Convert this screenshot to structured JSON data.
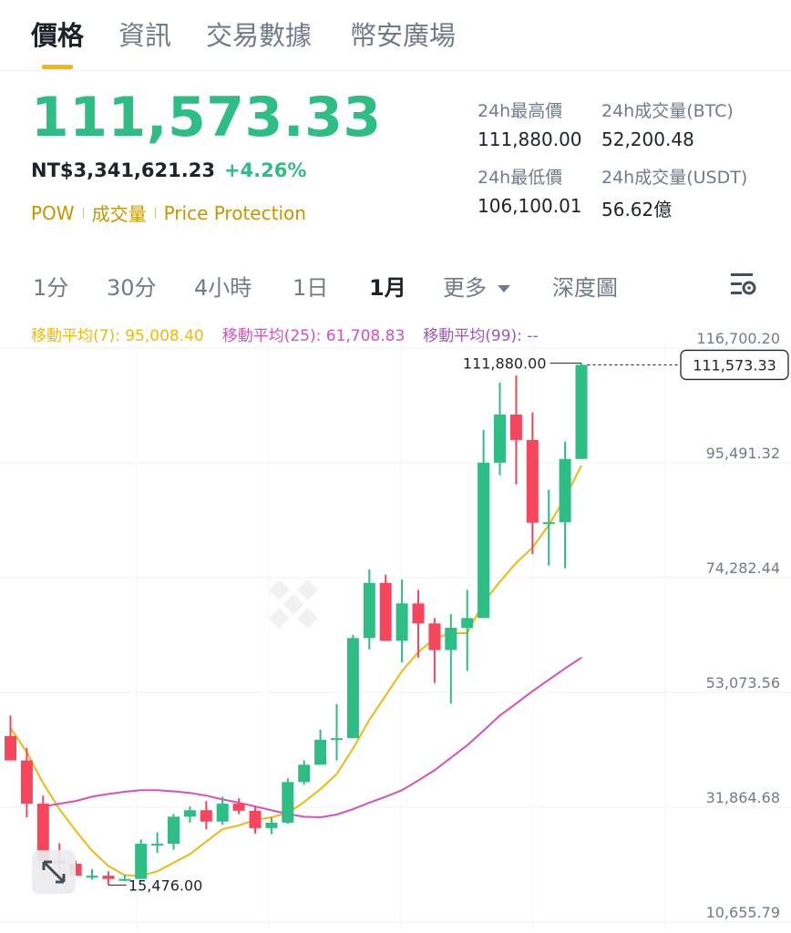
{
  "tabs": [
    {
      "label": "價格",
      "active": true
    },
    {
      "label": "資訊",
      "active": false
    },
    {
      "label": "交易數據",
      "active": false
    },
    {
      "label": "幣安廣場",
      "active": false
    }
  ],
  "ticker": {
    "last_price": "111,573.33",
    "fiat_price": "NT$3,341,621.23",
    "change_pct": "+4.26%",
    "tags": [
      "POW",
      "成交量",
      "Price Protection"
    ]
  },
  "stats": {
    "high_label": "24h最高價",
    "high_value": "111,880.00",
    "vol_btc_label": "24h成交量(BTC)",
    "vol_btc_value": "52,200.48",
    "low_label": "24h最低價",
    "low_value": "106,100.01",
    "vol_usdt_label": "24h成交量(USDT)",
    "vol_usdt_value": "56.62億"
  },
  "timeframes": {
    "items": [
      "1分",
      "30分",
      "4小時",
      "1日",
      "1月"
    ],
    "active": "1月",
    "more_label": "更多",
    "depth_label": "深度圖"
  },
  "indicators": {
    "ma7": "移動平均(7): 95,008.40",
    "ma25": "移動平均(25): 61,708.83",
    "ma99": "移動平均(99): --"
  },
  "colors": {
    "up": "#2ebd85",
    "down": "#f6465d",
    "accent": "#f0b90b",
    "ma7": "#f0b90b",
    "ma25": "#d84fbd",
    "ma99": "#9b59b6"
  },
  "icons": [
    "chart-settings-icon",
    "expand-icon",
    "dropdown-caret-icon"
  ],
  "chart_data": {
    "type": "candlestick",
    "interval": "1月",
    "y_axis_ticks": [
      "116,700.20",
      "95,491.32",
      "74,282.44",
      "53,073.56",
      "31,864.68",
      "10,655.79"
    ],
    "ylim": [
      10655.79,
      116700.2
    ],
    "current_price_label": "111,573.33",
    "max_label": "111,880.00",
    "min_label": "15,476.00",
    "candles": [
      {
        "o": 43000,
        "h": 46800,
        "l": 38500,
        "c": 38500
      },
      {
        "o": 38500,
        "h": 40800,
        "l": 28000,
        "c": 30500
      },
      {
        "o": 30500,
        "h": 32000,
        "l": 19000,
        "c": 19900
      },
      {
        "o": 19900,
        "h": 23200,
        "l": 16600,
        "c": 19400
      },
      {
        "o": 19400,
        "h": 20000,
        "l": 17200,
        "c": 17200
      },
      {
        "o": 17200,
        "h": 18400,
        "l": 16500,
        "c": 17200
      },
      {
        "o": 17200,
        "h": 18000,
        "l": 15476,
        "c": 16600
      },
      {
        "o": 16600,
        "h": 17400,
        "l": 16200,
        "c": 16600
      },
      {
        "o": 16600,
        "h": 23900,
        "l": 16600,
        "c": 23100
      },
      {
        "o": 23100,
        "h": 25200,
        "l": 21400,
        "c": 23100
      },
      {
        "o": 23100,
        "h": 28600,
        "l": 22000,
        "c": 28100
      },
      {
        "o": 28100,
        "h": 30000,
        "l": 27000,
        "c": 29300
      },
      {
        "o": 29300,
        "h": 31000,
        "l": 25800,
        "c": 27200
      },
      {
        "o": 27200,
        "h": 31800,
        "l": 26600,
        "c": 30500
      },
      {
        "o": 30500,
        "h": 31500,
        "l": 28600,
        "c": 29200
      },
      {
        "o": 29200,
        "h": 30000,
        "l": 25000,
        "c": 26000
      },
      {
        "o": 26000,
        "h": 28000,
        "l": 24900,
        "c": 27000
      },
      {
        "o": 27000,
        "h": 35200,
        "l": 26800,
        "c": 34500
      },
      {
        "o": 34500,
        "h": 38500,
        "l": 34000,
        "c": 37700
      },
      {
        "o": 37700,
        "h": 44200,
        "l": 37700,
        "c": 42300
      },
      {
        "o": 42300,
        "h": 48900,
        "l": 38500,
        "c": 42600
      },
      {
        "o": 42600,
        "h": 61700,
        "l": 42600,
        "c": 61100
      },
      {
        "o": 61100,
        "h": 73800,
        "l": 59000,
        "c": 71300
      },
      {
        "o": 71300,
        "h": 72800,
        "l": 60800,
        "c": 60600
      },
      {
        "o": 60600,
        "h": 71900,
        "l": 56600,
        "c": 67500
      },
      {
        "o": 67500,
        "h": 70000,
        "l": 57500,
        "c": 63800
      },
      {
        "o": 63800,
        "h": 64800,
        "l": 52800,
        "c": 58900
      },
      {
        "o": 58900,
        "h": 65500,
        "l": 49000,
        "c": 63000
      },
      {
        "o": 63000,
        "h": 70000,
        "l": 55000,
        "c": 64800
      },
      {
        "o": 64800,
        "h": 99500,
        "l": 64800,
        "c": 93500
      },
      {
        "o": 93500,
        "h": 108300,
        "l": 91200,
        "c": 102400
      },
      {
        "o": 102400,
        "h": 109600,
        "l": 89500,
        "c": 97700
      },
      {
        "o": 97700,
        "h": 102800,
        "l": 76600,
        "c": 82400
      },
      {
        "o": 82400,
        "h": 88500,
        "l": 74500,
        "c": 82500
      },
      {
        "o": 82500,
        "h": 97400,
        "l": 74000,
        "c": 94200
      },
      {
        "o": 94200,
        "h": 111880,
        "l": 94200,
        "c": 111573.33
      }
    ],
    "series": [
      {
        "name": "移動平均(7)",
        "values": [
          44500,
          40000,
          34300,
          29500,
          25500,
          21800,
          19000,
          17300,
          17200,
          18000,
          19600,
          21200,
          23500,
          25800,
          26500,
          27500,
          28000,
          28800,
          30800,
          33200,
          36000,
          40700,
          46000,
          50500,
          55000,
          58500,
          61000,
          62000,
          62000,
          67700,
          71500,
          75000,
          77800,
          82000,
          87000,
          93000
        ]
      },
      {
        "name": "移動平均(25)",
        "values": [
          30000,
          30500,
          31000,
          31800,
          32300,
          32700,
          33000,
          33000,
          32800,
          32500,
          32000,
          31300,
          30700,
          30000,
          29300,
          28600,
          28100,
          28000,
          28500,
          29500,
          30700,
          31800,
          33000,
          34800,
          36700,
          39000,
          41300,
          44000,
          46800,
          49000,
          51300,
          53400,
          55500,
          57500
        ]
      }
    ]
  }
}
